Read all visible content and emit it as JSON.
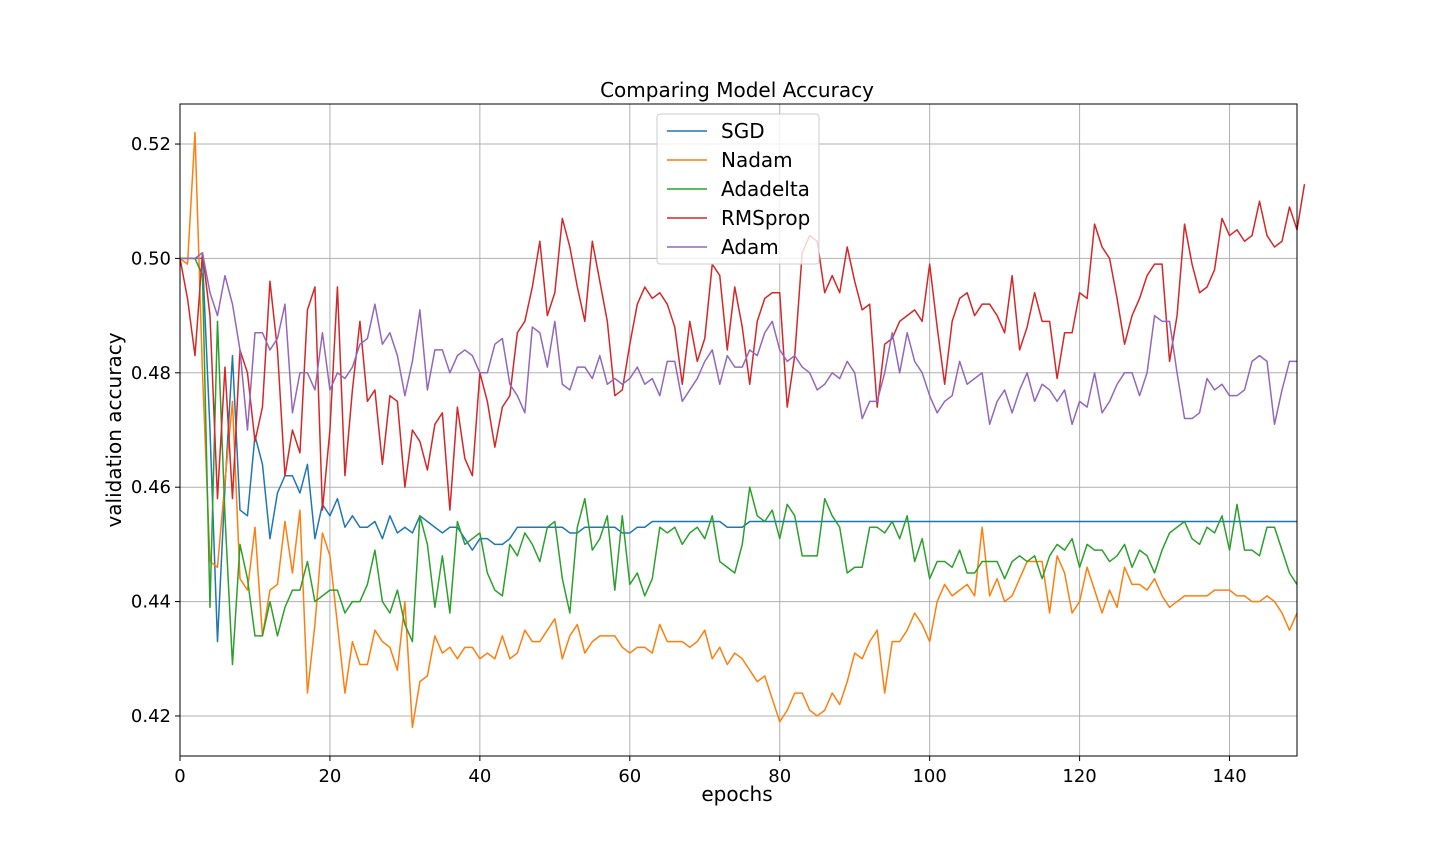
{
  "chart_data": {
    "type": "line",
    "title": "Comparing Model Accuracy",
    "xlabel": "epochs",
    "ylabel": "validation accuracy",
    "xlim": [
      0,
      149
    ],
    "ylim": [
      0.413,
      0.527
    ],
    "xticks": [
      0,
      20,
      40,
      60,
      80,
      100,
      120,
      140
    ],
    "yticks": [
      0.42,
      0.44,
      0.46,
      0.48,
      0.5,
      0.52
    ],
    "xtick_labels": [
      "0",
      "20",
      "40",
      "60",
      "80",
      "100",
      "120",
      "140"
    ],
    "ytick_labels": [
      "0.42",
      "0.44",
      "0.46",
      "0.48",
      "0.50",
      "0.52"
    ],
    "grid": true,
    "legend_position": "top-center",
    "series": [
      {
        "name": "SGD",
        "color": "#1f77b4",
        "values": [
          0.5,
          0.5,
          0.5,
          0.5,
          0.47,
          0.433,
          0.46,
          0.483,
          0.456,
          0.455,
          0.469,
          0.464,
          0.451,
          0.459,
          0.462,
          0.462,
          0.459,
          0.464,
          0.451,
          0.457,
          0.455,
          0.458,
          0.453,
          0.455,
          0.453,
          0.453,
          0.454,
          0.451,
          0.455,
          0.452,
          0.453,
          0.452,
          0.455,
          0.454,
          0.453,
          0.452,
          0.453,
          0.453,
          0.451,
          0.449,
          0.451,
          0.451,
          0.45,
          0.45,
          0.451,
          0.453,
          0.453,
          0.453,
          0.453,
          0.453,
          0.453,
          0.453,
          0.452,
          0.452,
          0.453,
          0.453,
          0.453,
          0.453,
          0.453,
          0.452,
          0.452,
          0.453,
          0.453,
          0.454,
          0.454,
          0.454,
          0.454,
          0.454,
          0.454,
          0.454,
          0.454,
          0.454,
          0.454,
          0.453,
          0.453,
          0.453,
          0.454,
          0.454,
          0.454,
          0.454,
          0.454,
          0.454,
          0.454,
          0.454,
          0.454,
          0.454,
          0.454,
          0.454,
          0.454,
          0.454,
          0.454,
          0.454,
          0.454,
          0.454,
          0.454,
          0.454,
          0.454,
          0.454,
          0.454,
          0.454,
          0.454,
          0.454,
          0.454,
          0.454,
          0.454,
          0.454,
          0.454,
          0.454,
          0.454,
          0.454,
          0.454,
          0.454,
          0.454,
          0.454,
          0.454,
          0.454,
          0.454,
          0.454,
          0.454,
          0.454,
          0.454,
          0.454,
          0.454,
          0.454,
          0.454,
          0.454,
          0.454,
          0.454,
          0.454,
          0.454,
          0.454,
          0.454,
          0.454,
          0.454,
          0.454,
          0.454,
          0.454,
          0.454,
          0.454,
          0.454,
          0.454,
          0.454,
          0.454,
          0.454,
          0.454,
          0.454,
          0.454,
          0.454,
          0.454,
          0.454
        ]
      },
      {
        "name": "Nadam",
        "color": "#ff7f0e",
        "values": [
          0.5,
          0.499,
          0.522,
          0.48,
          0.447,
          0.446,
          0.461,
          0.475,
          0.444,
          0.442,
          0.453,
          0.434,
          0.442,
          0.443,
          0.454,
          0.445,
          0.456,
          0.424,
          0.436,
          0.452,
          0.448,
          0.436,
          0.424,
          0.433,
          0.429,
          0.429,
          0.435,
          0.433,
          0.432,
          0.428,
          0.44,
          0.418,
          0.426,
          0.427,
          0.434,
          0.431,
          0.432,
          0.43,
          0.432,
          0.432,
          0.43,
          0.431,
          0.43,
          0.434,
          0.43,
          0.431,
          0.435,
          0.433,
          0.433,
          0.435,
          0.437,
          0.43,
          0.434,
          0.436,
          0.431,
          0.433,
          0.434,
          0.434,
          0.434,
          0.432,
          0.431,
          0.432,
          0.432,
          0.431,
          0.436,
          0.433,
          0.433,
          0.433,
          0.432,
          0.433,
          0.435,
          0.43,
          0.432,
          0.429,
          0.431,
          0.43,
          0.428,
          0.426,
          0.427,
          0.423,
          0.419,
          0.421,
          0.424,
          0.424,
          0.421,
          0.42,
          0.421,
          0.424,
          0.422,
          0.426,
          0.431,
          0.43,
          0.433,
          0.435,
          0.424,
          0.433,
          0.433,
          0.435,
          0.438,
          0.436,
          0.433,
          0.44,
          0.443,
          0.441,
          0.442,
          0.443,
          0.441,
          0.453,
          0.441,
          0.444,
          0.44,
          0.441,
          0.444,
          0.447,
          0.447,
          0.447,
          0.438,
          0.448,
          0.445,
          0.438,
          0.44,
          0.446,
          0.442,
          0.438,
          0.442,
          0.439,
          0.446,
          0.443,
          0.443,
          0.442,
          0.444,
          0.441,
          0.439,
          0.44,
          0.441,
          0.441,
          0.441,
          0.441,
          0.442,
          0.442,
          0.442,
          0.441,
          0.441,
          0.44,
          0.44,
          0.441,
          0.44,
          0.438,
          0.435,
          0.438
        ]
      },
      {
        "name": "Adadelta",
        "color": "#2ca02c",
        "values": [
          0.5,
          0.5,
          0.5,
          0.497,
          0.439,
          0.489,
          0.455,
          0.429,
          0.45,
          0.444,
          0.434,
          0.434,
          0.44,
          0.434,
          0.439,
          0.442,
          0.442,
          0.447,
          0.44,
          0.441,
          0.442,
          0.442,
          0.438,
          0.44,
          0.44,
          0.443,
          0.449,
          0.44,
          0.438,
          0.442,
          0.436,
          0.433,
          0.455,
          0.45,
          0.439,
          0.448,
          0.438,
          0.454,
          0.45,
          0.451,
          0.452,
          0.445,
          0.442,
          0.441,
          0.45,
          0.448,
          0.452,
          0.45,
          0.447,
          0.453,
          0.454,
          0.444,
          0.438,
          0.453,
          0.458,
          0.449,
          0.451,
          0.455,
          0.442,
          0.455,
          0.443,
          0.445,
          0.441,
          0.444,
          0.453,
          0.452,
          0.453,
          0.45,
          0.452,
          0.453,
          0.451,
          0.455,
          0.447,
          0.446,
          0.445,
          0.45,
          0.46,
          0.455,
          0.454,
          0.456,
          0.451,
          0.457,
          0.455,
          0.448,
          0.448,
          0.448,
          0.458,
          0.455,
          0.453,
          0.445,
          0.446,
          0.446,
          0.453,
          0.453,
          0.452,
          0.454,
          0.451,
          0.455,
          0.447,
          0.451,
          0.444,
          0.447,
          0.447,
          0.446,
          0.449,
          0.445,
          0.445,
          0.447,
          0.447,
          0.447,
          0.444,
          0.447,
          0.448,
          0.447,
          0.448,
          0.444,
          0.448,
          0.45,
          0.449,
          0.451,
          0.446,
          0.45,
          0.449,
          0.449,
          0.447,
          0.448,
          0.45,
          0.446,
          0.449,
          0.448,
          0.445,
          0.449,
          0.452,
          0.453,
          0.454,
          0.451,
          0.45,
          0.453,
          0.452,
          0.455,
          0.449,
          0.457,
          0.449,
          0.449,
          0.448,
          0.453,
          0.453,
          0.449,
          0.445,
          0.443
        ]
      },
      {
        "name": "RMSprop",
        "color": "#d62728",
        "values": [
          0.5,
          0.493,
          0.483,
          0.501,
          0.49,
          0.458,
          0.481,
          0.458,
          0.484,
          0.48,
          0.468,
          0.474,
          0.496,
          0.484,
          0.462,
          0.47,
          0.466,
          0.491,
          0.495,
          0.456,
          0.47,
          0.495,
          0.462,
          0.477,
          0.489,
          0.475,
          0.477,
          0.464,
          0.476,
          0.475,
          0.46,
          0.47,
          0.468,
          0.463,
          0.471,
          0.473,
          0.456,
          0.474,
          0.465,
          0.462,
          0.48,
          0.475,
          0.467,
          0.474,
          0.476,
          0.487,
          0.489,
          0.495,
          0.503,
          0.49,
          0.494,
          0.507,
          0.502,
          0.495,
          0.489,
          0.503,
          0.496,
          0.489,
          0.476,
          0.477,
          0.485,
          0.492,
          0.495,
          0.493,
          0.494,
          0.492,
          0.488,
          0.478,
          0.489,
          0.482,
          0.486,
          0.499,
          0.497,
          0.484,
          0.495,
          0.488,
          0.478,
          0.489,
          0.493,
          0.494,
          0.494,
          0.474,
          0.483,
          0.501,
          0.504,
          0.503,
          0.494,
          0.497,
          0.494,
          0.502,
          0.496,
          0.491,
          0.492,
          0.474,
          0.485,
          0.486,
          0.489,
          0.49,
          0.491,
          0.489,
          0.499,
          0.488,
          0.478,
          0.489,
          0.493,
          0.494,
          0.49,
          0.492,
          0.492,
          0.49,
          0.487,
          0.497,
          0.484,
          0.488,
          0.494,
          0.489,
          0.489,
          0.479,
          0.487,
          0.487,
          0.494,
          0.493,
          0.506,
          0.502,
          0.5,
          0.493,
          0.485,
          0.49,
          0.493,
          0.497,
          0.499,
          0.499,
          0.482,
          0.49,
          0.506,
          0.499,
          0.494,
          0.495,
          0.498,
          0.507,
          0.504,
          0.505,
          0.503,
          0.504,
          0.51,
          0.504,
          0.502,
          0.503,
          0.509,
          0.505,
          0.513
        ]
      },
      {
        "name": "Adam",
        "color": "#9467bd",
        "values": [
          0.5,
          0.5,
          0.5,
          0.501,
          0.494,
          0.49,
          0.497,
          0.492,
          0.484,
          0.47,
          0.487,
          0.487,
          0.484,
          0.486,
          0.492,
          0.473,
          0.48,
          0.48,
          0.477,
          0.487,
          0.477,
          0.48,
          0.479,
          0.481,
          0.485,
          0.486,
          0.492,
          0.485,
          0.487,
          0.483,
          0.476,
          0.482,
          0.491,
          0.477,
          0.484,
          0.484,
          0.48,
          0.483,
          0.484,
          0.483,
          0.48,
          0.48,
          0.485,
          0.486,
          0.478,
          0.476,
          0.473,
          0.488,
          0.487,
          0.481,
          0.489,
          0.478,
          0.477,
          0.481,
          0.481,
          0.479,
          0.483,
          0.478,
          0.479,
          0.478,
          0.479,
          0.481,
          0.478,
          0.479,
          0.476,
          0.482,
          0.482,
          0.475,
          0.477,
          0.479,
          0.482,
          0.484,
          0.478,
          0.483,
          0.481,
          0.481,
          0.484,
          0.483,
          0.487,
          0.489,
          0.484,
          0.482,
          0.483,
          0.481,
          0.48,
          0.477,
          0.478,
          0.48,
          0.479,
          0.482,
          0.48,
          0.472,
          0.475,
          0.475,
          0.48,
          0.487,
          0.48,
          0.487,
          0.482,
          0.48,
          0.476,
          0.473,
          0.475,
          0.476,
          0.482,
          0.478,
          0.479,
          0.48,
          0.471,
          0.475,
          0.477,
          0.473,
          0.477,
          0.48,
          0.475,
          0.478,
          0.477,
          0.475,
          0.477,
          0.471,
          0.475,
          0.474,
          0.48,
          0.473,
          0.475,
          0.478,
          0.48,
          0.48,
          0.476,
          0.48,
          0.49,
          0.489,
          0.489,
          0.48,
          0.472,
          0.472,
          0.473,
          0.479,
          0.477,
          0.478,
          0.476,
          0.476,
          0.477,
          0.482,
          0.483,
          0.482,
          0.471,
          0.477,
          0.482,
          0.482
        ]
      }
    ]
  }
}
